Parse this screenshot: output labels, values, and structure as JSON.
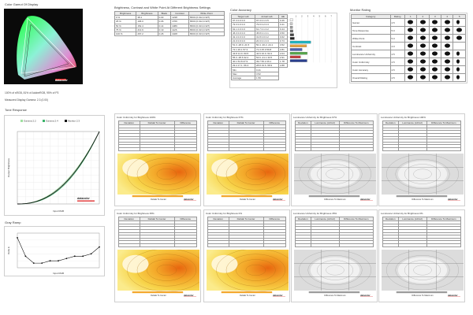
{
  "gamut": {
    "title": "Color Gamut Of Display",
    "coverage": "100% of sRGB, 81% of AdobeRGB, 95% of P3",
    "gamma": "Measured Display Gamma: 2.3 (0.00)"
  },
  "brightness_table": {
    "title": "Brightness, Contrast and White Point At Different Brightness Settings",
    "headers": [
      "Brightness",
      "Brightness",
      "Black",
      "Contrast",
      "White Point"
    ],
    "rows": [
      [
        "0 %",
        "38.1",
        "0.03",
        "1238",
        "6500 (0.312,0.327)"
      ],
      [
        "25 %",
        "106.0",
        "0.06",
        "1766",
        "6500 (0.312,0.327)"
      ],
      [
        "50 %",
        "152.4",
        "0.14",
        "1089",
        "6500 (0.313,0.327)"
      ],
      [
        "75 %",
        "213.9",
        "0.19",
        "1126",
        "6500 (0.313,0.327)"
      ],
      [
        "100 %",
        "267.2",
        "0.26",
        "1028",
        "6500 (0.313,0.327)"
      ]
    ]
  },
  "color_accuracy": {
    "title": "Color Accuracy",
    "headers": [
      "Target Lab",
      "Actual Lab",
      "ΔE"
    ],
    "rows": [
      [
        "97.3 0.0 0.0",
        "97.3 0.1 0.5",
        "0.46"
      ],
      [
        "79.3 0.0 0.0",
        "79.0 0.2 0.3",
        "0.41"
      ],
      [
        "62.1 0.0 0.0",
        "61.7 0.1 0.2",
        "0.44"
      ],
      [
        "46.3 0.0 0.0",
        "45.8 0.1 0.1",
        "0.50"
      ],
      [
        "32.4 0.0 0.0",
        "31.8 0.0 0.2",
        "0.62"
      ],
      [
        "21.0 0.0 0.0",
        "20.3 0.1 0.3",
        "0.73"
      ],
      [
        "51.3 -28.0 -21.5",
        "50.4 -30.2 -24.1",
        "3.52"
      ],
      [
        "72.1 26.1 57.3",
        "71.3 25.0 59.8",
        "2.81"
      ],
      [
        "43.8 14.9 -50.5",
        "42.9 16.0 -52.2",
        "2.04"
      ],
      [
        "55.3 -38.6 32.2",
        "54.6 -41.1 33.5",
        "2.91"
      ],
      [
        "40.1 54.8 27.9",
        "39.7 56.2 29.1",
        "1.78"
      ],
      [
        "29.4 17.1 -56.3",
        "28.8 19.6 -58.9",
        "2.88"
      ]
    ],
    "summary": [
      [
        "Min",
        "0.41"
      ],
      [
        "Max",
        "3.52"
      ],
      [
        "Average",
        "1.59"
      ]
    ],
    "bar_values": [
      0.46,
      0.41,
      0.44,
      0.5,
      0.62,
      0.73,
      3.52,
      2.81,
      2.04,
      2.91,
      1.78,
      2.88
    ],
    "bar_colors": [
      "#f2f2f2",
      "#cccccc",
      "#9a9a9a",
      "#6a6a6a",
      "#444444",
      "#222222",
      "#1fb5c2",
      "#e8a23c",
      "#4a5fb0",
      "#56a84a",
      "#c33c3c",
      "#2a3f8f"
    ],
    "axis_ticks": [
      "1",
      "2",
      "3",
      "4",
      "5",
      "6",
      "7"
    ]
  },
  "rating": {
    "title": "Monitor Rating",
    "headers": [
      "Category",
      "Rating",
      "1",
      "2",
      "3",
      "4",
      "5"
    ],
    "rows": [
      {
        "category": "Gamut",
        "score": "4.5",
        "stars": 4.5
      },
      {
        "category": "Tone Response",
        "score": "5.0",
        "stars": 5
      },
      {
        "category": "White Point",
        "score": "5.0",
        "stars": 5
      },
      {
        "category": "Contrast",
        "score": "4.0",
        "stars": 4
      },
      {
        "category": "Luminance Uniformity",
        "score": "4.5",
        "stars": 4.5
      },
      {
        "category": "Color Uniformity",
        "score": "4.5",
        "stars": 4.5
      },
      {
        "category": "Color Accuracy",
        "score": "4.5",
        "stars": 4.5
      },
      {
        "category": "Overall Rating",
        "score": "4.5",
        "stars": 4.5
      }
    ]
  },
  "tone": {
    "title": "Tone Response",
    "legend": [
      "Gamma 2.2",
      "Gamma 2.4",
      "Monitor 2.3"
    ],
    "xlabel": "Input RGB",
    "ylabel": "Output Brightness"
  },
  "gray_ramp": {
    "title": "Gray Ramp",
    "xlabel": "Input RGB",
    "ylabel": "Delta E",
    "x": [
      0,
      10,
      20,
      30,
      40,
      50,
      60,
      70,
      80,
      90,
      100
    ],
    "values": [
      1.3,
      0.5,
      0.2,
      0.2,
      0.3,
      0.3,
      0.4,
      0.5,
      0.5,
      0.6,
      0.9
    ]
  },
  "uniformity": [
    {
      "title": "Color Uniformity for Brightness 100%",
      "kind": "color",
      "footer": "DeltaE To Center"
    },
    {
      "title": "Color Uniformity for Brightness 67%",
      "kind": "color",
      "footer": "DeltaE To Center"
    },
    {
      "title": "Luminance Uniformity for Brightness 67%",
      "kind": "lum",
      "footer": "Difference To Maximum"
    },
    {
      "title": "Luminance Uniformity for Brightness 100%",
      "kind": "lum",
      "footer": "Difference To Maximum"
    },
    {
      "title": "Color Uniformity for Brightness 35%",
      "kind": "color",
      "footer": "DeltaE To Center"
    },
    {
      "title": "Color Uniformity for Brightness 0%",
      "kind": "color",
      "footer": "DeltaE To Center"
    },
    {
      "title": "Luminance Uniformity for Brightness 35%",
      "kind": "lum",
      "footer": "Difference To Maximum"
    },
    {
      "title": "Luminance Uniformity for Brightness 0%",
      "kind": "lum",
      "footer": "Difference To Maximum"
    }
  ],
  "uniformity_table_headers": {
    "color": [
      "Deviation",
      "DeltaE To Center",
      "Difference"
    ],
    "lum": [
      "Deviation",
      "Luminance (cd/m2)",
      "Difference To Maximum"
    ]
  },
  "logo_text": "datacolor"
}
